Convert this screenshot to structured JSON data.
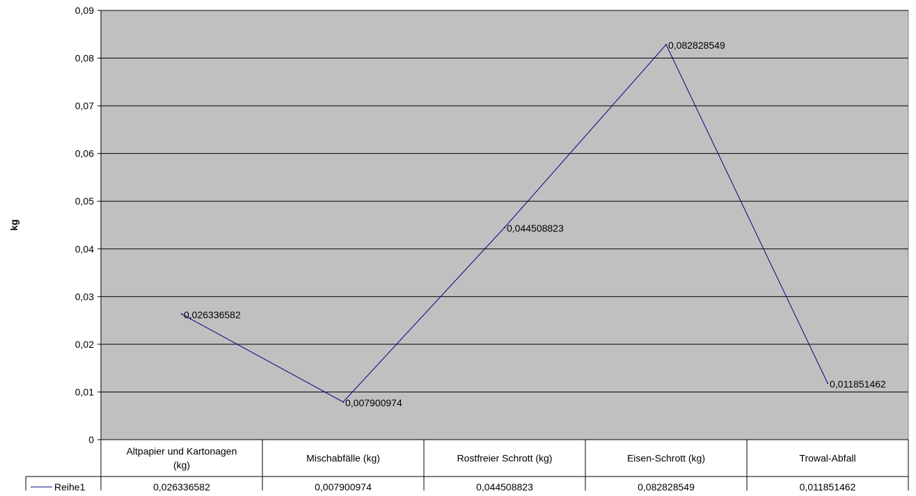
{
  "chart_data": {
    "type": "line",
    "title": "",
    "xlabel": "",
    "ylabel": "kg",
    "ylim": [
      0,
      0.09
    ],
    "yticks": [
      "0",
      "0,01",
      "0,02",
      "0,03",
      "0,04",
      "0,05",
      "0,06",
      "0,07",
      "0,08",
      "0,09"
    ],
    "ytick_values": [
      0,
      0.01,
      0.02,
      0.03,
      0.04,
      0.05,
      0.06,
      0.07,
      0.08,
      0.09
    ],
    "grid": true,
    "legend": "data-table-left",
    "categories": [
      [
        "Altpapier und Kartonagen",
        "(kg)"
      ],
      [
        "Mischabfälle (kg)"
      ],
      [
        "Rostfreier Schrott (kg)"
      ],
      [
        "Eisen-Schrott (kg)"
      ],
      [
        "Trowal-Abfall"
      ]
    ],
    "series": [
      {
        "name": "Reihe1",
        "values": [
          0.026336582,
          0.007900974,
          0.044508823,
          0.082828549,
          0.011851462
        ],
        "labels": [
          "0,026336582",
          "0,007900974",
          "0,044508823",
          "0,082828549",
          "0,011851462"
        ]
      }
    ],
    "colors": {
      "plot_bg": "#c0c0c0",
      "line": "#000080",
      "grid": "#000000"
    }
  }
}
